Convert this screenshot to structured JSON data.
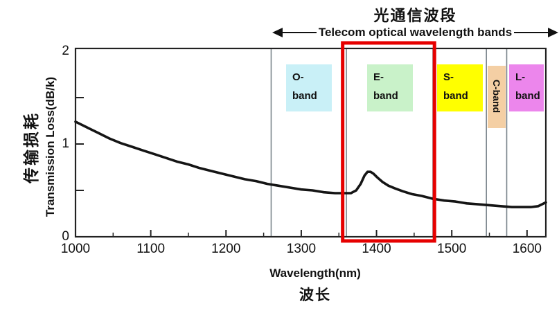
{
  "header": {
    "title_cn": "光通信波段",
    "subtitle_en": "Telecom  optical wavelength bands"
  },
  "y_axis": {
    "label_cn": "传输损耗",
    "label_en": "Transmission Loss(dB/k)"
  },
  "x_axis": {
    "label_en": "Wavelength(nm)",
    "label_cn": "波长"
  },
  "colors": {
    "curve": "#151515",
    "plot_border": "#222222",
    "band_boundary_line": "#7b858c",
    "highlight_red": "#e60000"
  },
  "chart_data": {
    "type": "line",
    "title": "光通信波段 (Telecom optical wavelength bands)",
    "xlabel": "Wavelength(nm)",
    "ylabel": "Transmission Loss(dB/k)",
    "xlim": [
      1000,
      1625
    ],
    "ylim": [
      0,
      2
    ],
    "grid": false,
    "x_ticks": [
      {
        "value": 1000,
        "label": "1000"
      },
      {
        "value": 1100,
        "label": "1100"
      },
      {
        "value": 1200,
        "label": "1200"
      },
      {
        "value": 1300,
        "label": "1300"
      },
      {
        "value": 1400,
        "label": "1400"
      },
      {
        "value": 1500,
        "label": "1500"
      },
      {
        "value": 1600,
        "label": "1600"
      }
    ],
    "x_minor_ticks": [
      1050,
      1150,
      1250,
      1350,
      1450,
      1550
    ],
    "y_ticks": [
      {
        "value": 0,
        "label": "0"
      },
      {
        "value": 1,
        "label": "1"
      },
      {
        "value": 2,
        "label": "2"
      }
    ],
    "y_minor_ticks": [
      0.5,
      1.5
    ],
    "series": [
      {
        "name": "fiber-transmission-loss",
        "points": [
          [
            1000,
            1.24
          ],
          [
            1015,
            1.18
          ],
          [
            1030,
            1.12
          ],
          [
            1045,
            1.06
          ],
          [
            1060,
            1.01
          ],
          [
            1075,
            0.97
          ],
          [
            1090,
            0.93
          ],
          [
            1105,
            0.89
          ],
          [
            1120,
            0.85
          ],
          [
            1135,
            0.81
          ],
          [
            1150,
            0.78
          ],
          [
            1165,
            0.74
          ],
          [
            1180,
            0.71
          ],
          [
            1195,
            0.68
          ],
          [
            1210,
            0.65
          ],
          [
            1225,
            0.62
          ],
          [
            1240,
            0.6
          ],
          [
            1255,
            0.57
          ],
          [
            1270,
            0.55
          ],
          [
            1285,
            0.53
          ],
          [
            1300,
            0.51
          ],
          [
            1315,
            0.5
          ],
          [
            1330,
            0.48
          ],
          [
            1345,
            0.47
          ],
          [
            1358,
            0.47
          ],
          [
            1366,
            0.47
          ],
          [
            1373,
            0.5
          ],
          [
            1379,
            0.57
          ],
          [
            1384,
            0.66
          ],
          [
            1388,
            0.7
          ],
          [
            1392,
            0.7
          ],
          [
            1396,
            0.68
          ],
          [
            1401,
            0.64
          ],
          [
            1408,
            0.59
          ],
          [
            1416,
            0.55
          ],
          [
            1425,
            0.52
          ],
          [
            1435,
            0.49
          ],
          [
            1447,
            0.46
          ],
          [
            1460,
            0.44
          ],
          [
            1475,
            0.41
          ],
          [
            1490,
            0.39
          ],
          [
            1505,
            0.38
          ],
          [
            1520,
            0.36
          ],
          [
            1535,
            0.35
          ],
          [
            1550,
            0.34
          ],
          [
            1565,
            0.33
          ],
          [
            1580,
            0.32
          ],
          [
            1595,
            0.32
          ],
          [
            1605,
            0.32
          ],
          [
            1615,
            0.33
          ],
          [
            1625,
            0.37
          ]
        ]
      }
    ],
    "bands": [
      {
        "name": "O-band",
        "label_lines": [
          "O-",
          "band"
        ],
        "range_nm": [
          1260,
          1360
        ],
        "color": "#c9f0f7",
        "text_vertical": false
      },
      {
        "name": "E-band",
        "label_lines": [
          "E-",
          "band"
        ],
        "range_nm": [
          1360,
          1475
        ],
        "color": "#c9f2c9",
        "text_vertical": false,
        "highlighted": true
      },
      {
        "name": "S-band",
        "label_lines": [
          "S-",
          "band"
        ],
        "range_nm": [
          1475,
          1546
        ],
        "color": "#ffff00",
        "text_vertical": false
      },
      {
        "name": "C-band",
        "label_lines": [
          "C-band"
        ],
        "range_nm": [
          1546,
          1573
        ],
        "color": "#f4cfa4",
        "text_vertical": true
      },
      {
        "name": "L-band",
        "label_lines": [
          "L-",
          "band"
        ],
        "range_nm": [
          1573,
          1625
        ],
        "color": "#ec86ec",
        "text_vertical": false
      }
    ],
    "highlight_box": {
      "band": "E-band",
      "color": "#e60000",
      "range_nm": [
        1355,
        1477
      ]
    }
  }
}
